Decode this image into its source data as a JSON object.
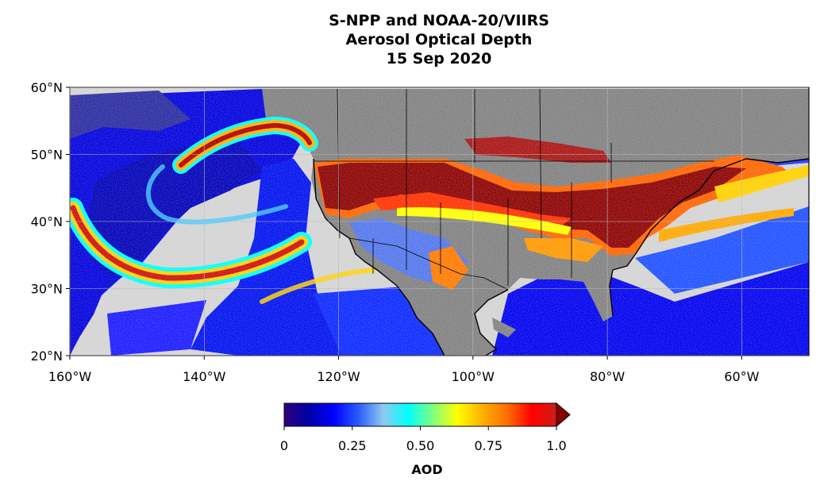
{
  "title": {
    "line1": "S-NPP and NOAA-20/VIIRS",
    "line2": "Aerosol Optical Depth",
    "line3": "15 Sep 2020"
  },
  "map": {
    "lat_range": [
      20,
      60
    ],
    "lon_range": [
      -160,
      -50
    ],
    "lat_ticks": [
      {
        "value": 60,
        "label": "60°N"
      },
      {
        "value": 50,
        "label": "50°N"
      },
      {
        "value": 40,
        "label": "40°N"
      },
      {
        "value": 30,
        "label": "30°N"
      },
      {
        "value": 20,
        "label": "20°N"
      }
    ],
    "lon_ticks": [
      {
        "value": -160,
        "label": "160°W"
      },
      {
        "value": -140,
        "label": "140°W"
      },
      {
        "value": -120,
        "label": "120°W"
      },
      {
        "value": -100,
        "label": "100°W"
      },
      {
        "value": -80,
        "label": "80°W"
      },
      {
        "value": -60,
        "label": "60°W"
      }
    ],
    "gridlines": true,
    "colors": {
      "no_data": "#d3d3d3",
      "land": "#808080",
      "smoke_max": "#8b0000",
      "ocean_low": "#0000cc"
    }
  },
  "colorbar": {
    "label": "AOD",
    "ticks": [
      {
        "value": 0,
        "label": "0"
      },
      {
        "value": 0.25,
        "label": "0.25"
      },
      {
        "value": 0.5,
        "label": "0.50"
      },
      {
        "value": 0.75,
        "label": "0.75"
      },
      {
        "value": 1.0,
        "label": "1.0"
      }
    ],
    "range": [
      0,
      1.0
    ],
    "extend": "max",
    "stops": [
      "#30007a",
      "#0000a8",
      "#0000ff",
      "#2a5cff",
      "#90c8ee",
      "#00ffff",
      "#7fff7f",
      "#ffff00",
      "#ffb000",
      "#ff7000",
      "#ff0000",
      "#cc1c1c"
    ],
    "extend_color": "#8b0000"
  }
}
